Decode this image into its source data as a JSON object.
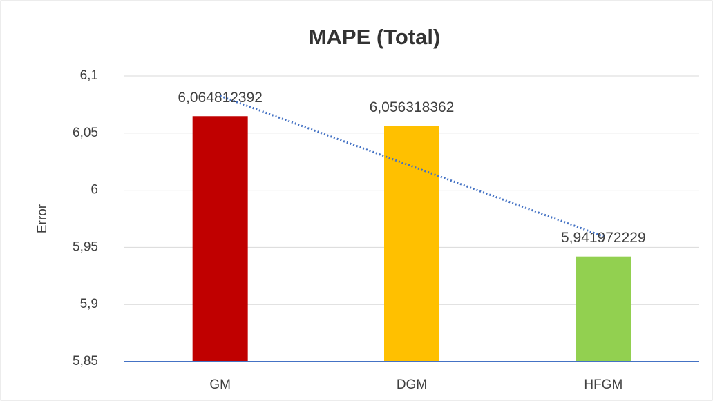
{
  "chart_data": {
    "type": "bar",
    "title": "MAPE (Total)",
    "y_label": "Error",
    "categories": [
      "GM",
      "DGM",
      "HFGM"
    ],
    "values": [
      6.064812392,
      6.056318362,
      5.941972229
    ],
    "value_labels": [
      "6,064812392",
      "6,056318362",
      "5,941972229"
    ],
    "colors": [
      "#c00000",
      "#ffc000",
      "#92d050"
    ],
    "ylim": [
      5.85,
      6.1
    ],
    "yticks": [
      {
        "value": 5.85,
        "label": "5,85"
      },
      {
        "value": 5.9,
        "label": "5,9"
      },
      {
        "value": 5.95,
        "label": "5,95"
      },
      6,
      {
        "value": 6.05,
        "label": "6,05"
      },
      {
        "value": 6.1,
        "label": "6,1"
      }
    ],
    "grid": true,
    "axis_color": "#4472c4",
    "trendline": "linear",
    "trendline_color": "#4472c4"
  }
}
